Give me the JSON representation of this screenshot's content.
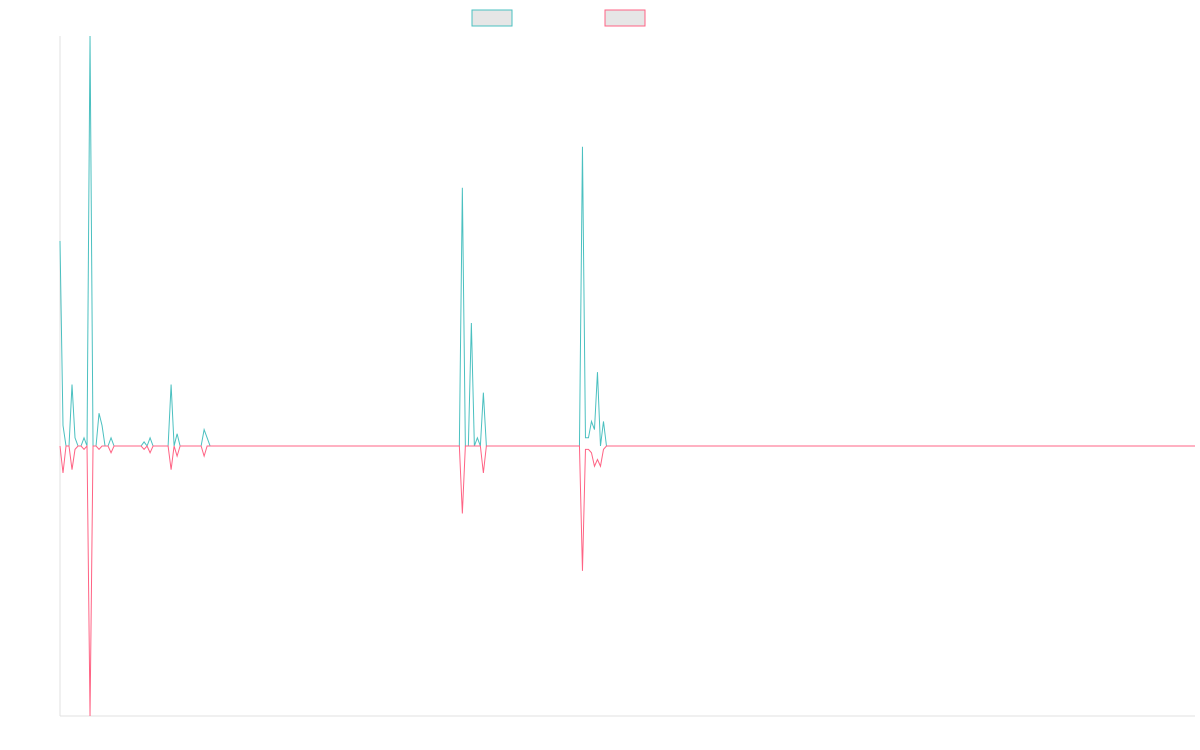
{
  "chart_data": {
    "type": "line",
    "title": "",
    "xlabel": "",
    "ylabel": "",
    "legend_position": "top-center",
    "grid": false,
    "ylim": [
      -1,
      1
    ],
    "x_points": 379,
    "series": [
      {
        "color": "#4bc0c0",
        "fill_color": "#e6e6e6",
        "points": [
          [
            0,
            0.5
          ],
          [
            1,
            0.05
          ],
          [
            2,
            0.0
          ],
          [
            3,
            0.0
          ],
          [
            4,
            0.15
          ],
          [
            5,
            0.02
          ],
          [
            6,
            0.0
          ],
          [
            7,
            0.0
          ],
          [
            8,
            0.02
          ],
          [
            9,
            0.0
          ],
          [
            10,
            1.0
          ],
          [
            11,
            0.0
          ],
          [
            12,
            0.0
          ],
          [
            13,
            0.08
          ],
          [
            14,
            0.05
          ],
          [
            15,
            0.0
          ],
          [
            16,
            0.0
          ],
          [
            17,
            0.02
          ],
          [
            18,
            0.0
          ],
          [
            27,
            0.0
          ],
          [
            28,
            0.01
          ],
          [
            29,
            0.0
          ],
          [
            30,
            0.02
          ],
          [
            31,
            0.0
          ],
          [
            36,
            0.0
          ],
          [
            37,
            0.15
          ],
          [
            38,
            0.0
          ],
          [
            39,
            0.03
          ],
          [
            40,
            0.0
          ],
          [
            47,
            0.0
          ],
          [
            48,
            0.04
          ],
          [
            49,
            0.02
          ],
          [
            50,
            0.0
          ],
          [
            132,
            0.0
          ],
          [
            133,
            0.0
          ],
          [
            134,
            0.63
          ],
          [
            135,
            0.0
          ],
          [
            136,
            0.0
          ],
          [
            137,
            0.3
          ],
          [
            138,
            0.0
          ],
          [
            139,
            0.02
          ],
          [
            140,
            0.0
          ],
          [
            141,
            0.13
          ],
          [
            142,
            0.0
          ],
          [
            143,
            0.0
          ],
          [
            173,
            0.0
          ],
          [
            174,
            0.73
          ],
          [
            175,
            0.02
          ],
          [
            176,
            0.02
          ],
          [
            177,
            0.06
          ],
          [
            178,
            0.04
          ],
          [
            179,
            0.18
          ],
          [
            180,
            0.0
          ],
          [
            181,
            0.06
          ],
          [
            182,
            0.0
          ],
          [
            378,
            0.0
          ]
        ]
      },
      {
        "color": "#ff6384",
        "fill_color": "#e6e6e6",
        "points": [
          [
            0,
            0.0
          ],
          [
            1,
            -0.08
          ],
          [
            2,
            0.0
          ],
          [
            3,
            0.0
          ],
          [
            4,
            -0.07
          ],
          [
            5,
            -0.01
          ],
          [
            6,
            0.0
          ],
          [
            7,
            0.0
          ],
          [
            8,
            -0.01
          ],
          [
            9,
            0.0
          ],
          [
            10,
            -0.8
          ],
          [
            11,
            0.0
          ],
          [
            12,
            0.0
          ],
          [
            13,
            -0.01
          ],
          [
            14,
            0.0
          ],
          [
            15,
            0.0
          ],
          [
            16,
            0.0
          ],
          [
            17,
            -0.02
          ],
          [
            18,
            0.0
          ],
          [
            27,
            0.0
          ],
          [
            28,
            -0.01
          ],
          [
            29,
            0.0
          ],
          [
            30,
            -0.02
          ],
          [
            31,
            0.0
          ],
          [
            36,
            0.0
          ],
          [
            37,
            -0.07
          ],
          [
            38,
            0.0
          ],
          [
            39,
            -0.03
          ],
          [
            40,
            0.0
          ],
          [
            47,
            0.0
          ],
          [
            48,
            -0.03
          ],
          [
            49,
            0.0
          ],
          [
            132,
            0.0
          ],
          [
            133,
            0.0
          ],
          [
            134,
            -0.2
          ],
          [
            135,
            0.0
          ],
          [
            136,
            0.0
          ],
          [
            137,
            0.0
          ],
          [
            138,
            0.0
          ],
          [
            139,
            0.0
          ],
          [
            140,
            0.0
          ],
          [
            141,
            -0.08
          ],
          [
            142,
            0.0
          ],
          [
            143,
            0.0
          ],
          [
            173,
            0.0
          ],
          [
            174,
            -0.37
          ],
          [
            175,
            -0.01
          ],
          [
            176,
            -0.01
          ],
          [
            177,
            -0.02
          ],
          [
            178,
            -0.06
          ],
          [
            179,
            -0.04
          ],
          [
            180,
            -0.06
          ],
          [
            181,
            -0.01
          ],
          [
            182,
            0.0
          ],
          [
            378,
            0.0
          ]
        ]
      }
    ]
  }
}
